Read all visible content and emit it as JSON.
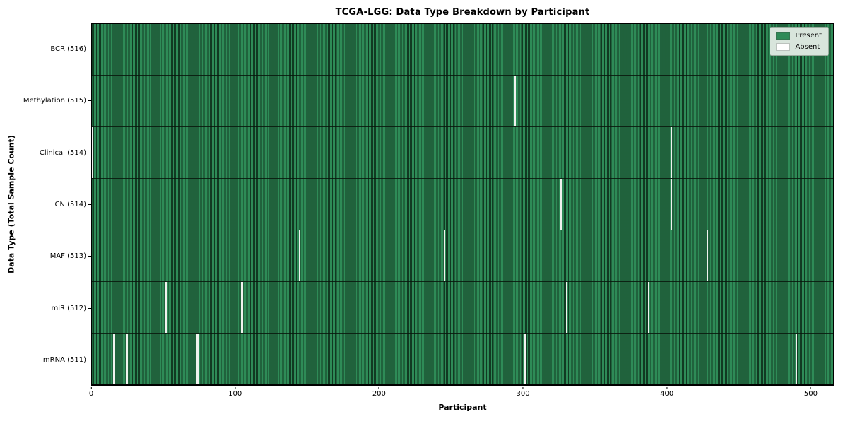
{
  "figure": {
    "title": "TCGA-LGG: Data Type Breakdown by Participant",
    "xlabel": "Participant",
    "ylabel": "Data Type (Total Sample Count)"
  },
  "legend": {
    "items": [
      {
        "label": "Present",
        "color": "#2e8b57"
      },
      {
        "label": "Absent",
        "color": "#ffffff"
      }
    ]
  },
  "chart_data": {
    "type": "heatmap",
    "title": "TCGA-LGG: Data Type Breakdown by Participant",
    "xlabel": "Participant",
    "ylabel": "Data Type (Total Sample Count)",
    "x_range": [
      0,
      516
    ],
    "x_ticks": [
      0,
      100,
      200,
      300,
      400,
      500
    ],
    "n_participants": 516,
    "grid": false,
    "legend_position": "upper right",
    "value_encoding": {
      "present": 1,
      "absent": 0
    },
    "colors": {
      "present": "#2e8b57",
      "absent": "#ffffff",
      "cell_edge": "#0a1f12"
    },
    "rows": [
      {
        "label": "BCR (516)",
        "data_type": "BCR",
        "present_count": 516,
        "absent_count": 0,
        "absent_participants": []
      },
      {
        "label": "Methylation (515)",
        "data_type": "Methylation",
        "present_count": 515,
        "absent_count": 1,
        "absent_participants": [
          294
        ]
      },
      {
        "label": "Clinical (514)",
        "data_type": "Clinical",
        "present_count": 514,
        "absent_count": 2,
        "absent_participants": [
          0,
          403
        ]
      },
      {
        "label": "CN (514)",
        "data_type": "CN",
        "present_count": 514,
        "absent_count": 2,
        "absent_participants": [
          326,
          403
        ]
      },
      {
        "label": "MAF (513)",
        "data_type": "MAF",
        "present_count": 513,
        "absent_count": 3,
        "absent_participants": [
          144,
          245,
          428
        ]
      },
      {
        "label": "miR (512)",
        "data_type": "miR",
        "present_count": 512,
        "absent_count": 4,
        "absent_participants": [
          51,
          104,
          330,
          387
        ]
      },
      {
        "label": "mRNA (511)",
        "data_type": "mRNA",
        "present_count": 511,
        "absent_count": 5,
        "absent_participants": [
          15,
          24,
          73,
          301,
          490
        ]
      }
    ]
  }
}
